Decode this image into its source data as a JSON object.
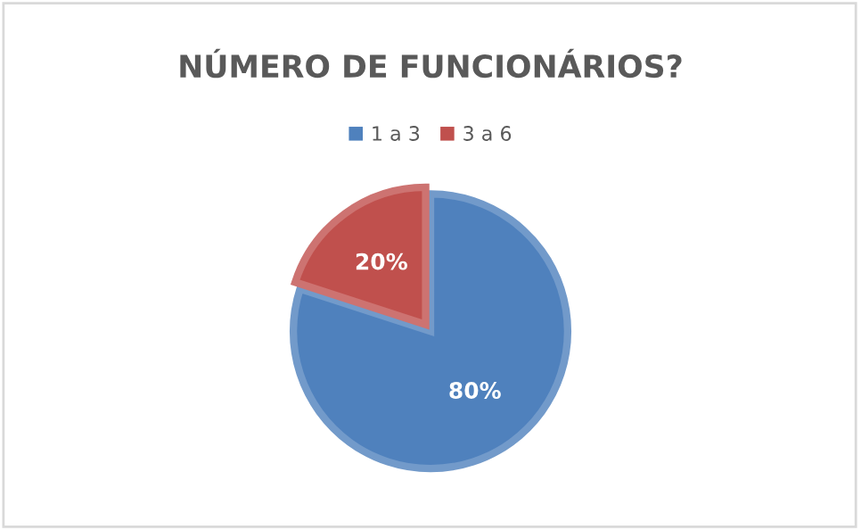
{
  "chart_data": {
    "type": "pie",
    "title": "NÚMERO DE FUNCIONÁRIOS?",
    "categories": [
      "1 a 3",
      "3 a 6"
    ],
    "values": [
      80,
      20
    ],
    "colors": [
      "#4f81bd",
      "#c0504d"
    ],
    "value_labels": [
      "80%",
      "20%"
    ],
    "legend": "top"
  }
}
